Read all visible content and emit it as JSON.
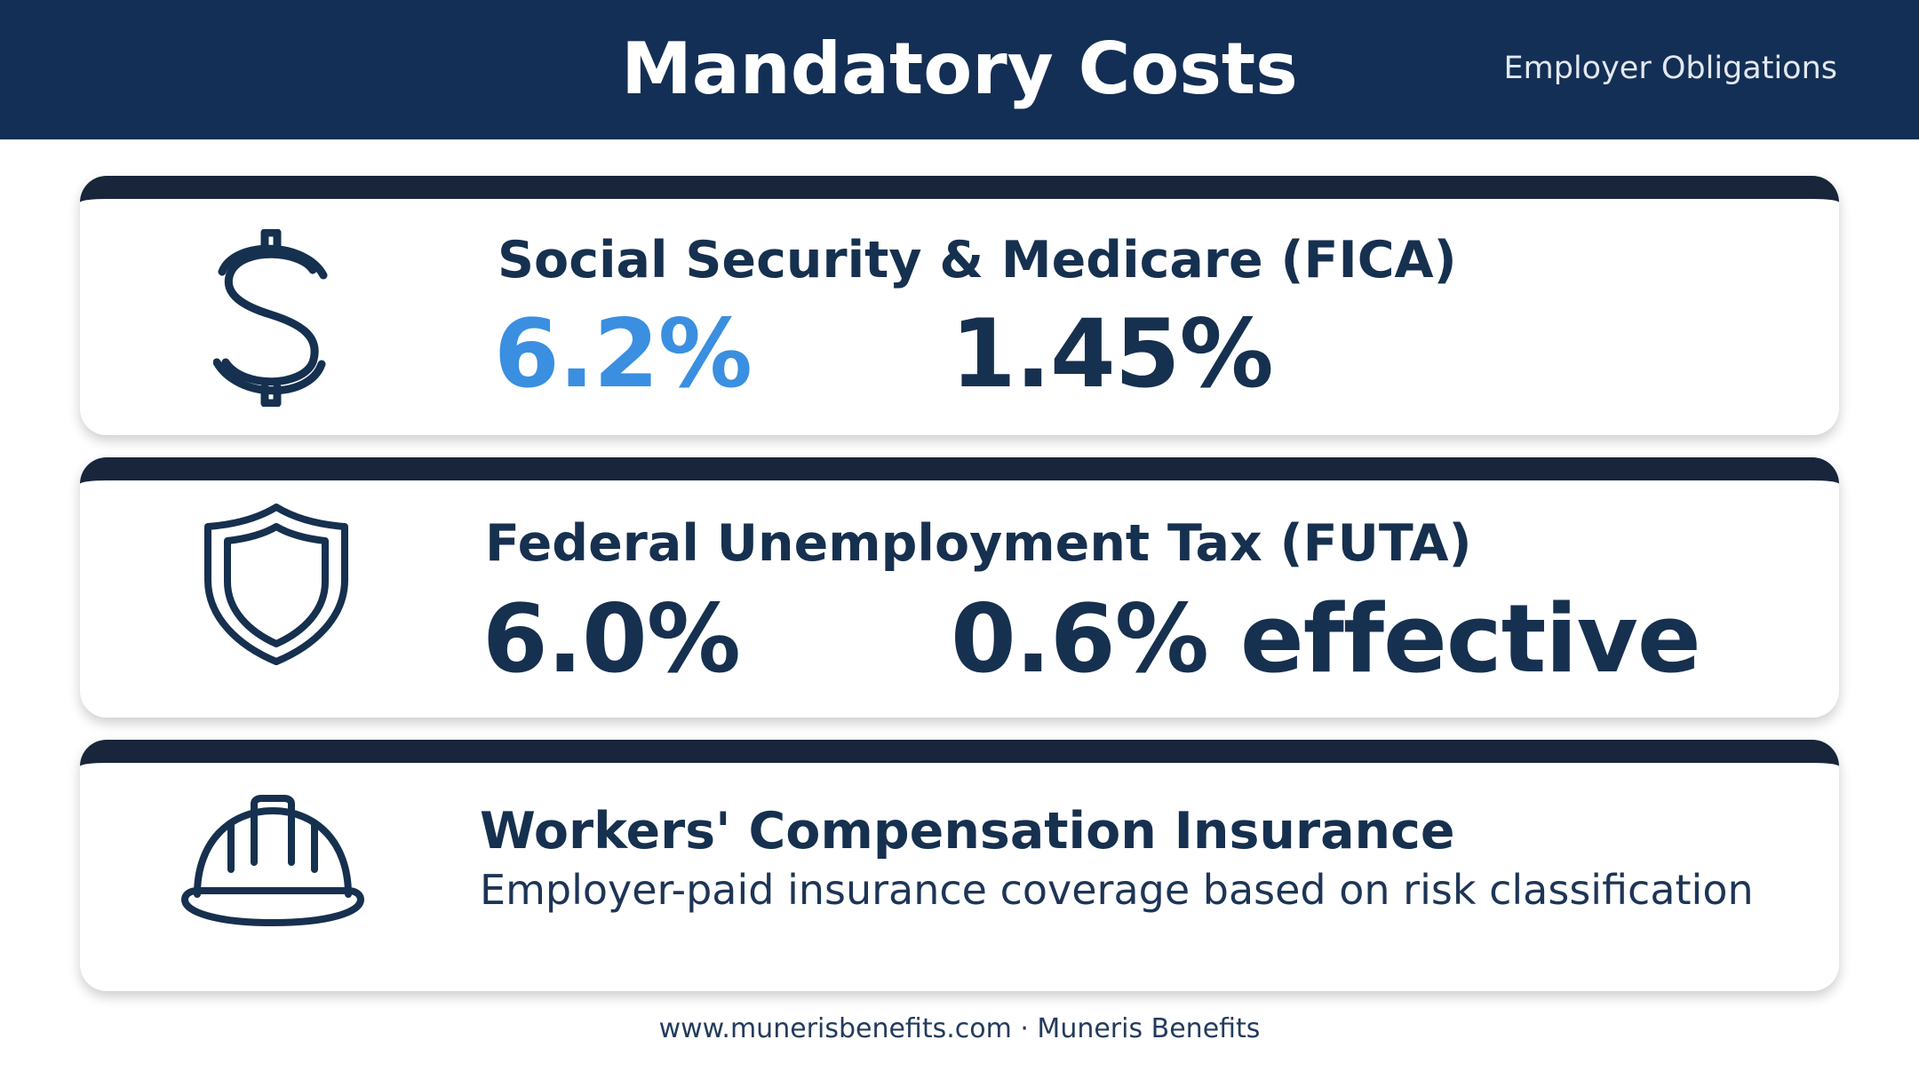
{
  "header": {
    "title": "Mandatory Costs",
    "subtitle": "Employer Obligations"
  },
  "cards": [
    {
      "icon": "dollar-sign-icon",
      "title": "Social Security & Medicare (FICA)",
      "stats": [
        "6.2%",
        "1.45%"
      ]
    },
    {
      "icon": "shield-icon",
      "title": "Federal Unemployment Tax (FUTA)",
      "stats": [
        "6.0%",
        "0.6% effective"
      ]
    },
    {
      "icon": "hard-hat-icon",
      "title": "Workers' Compensation Insurance",
      "description": "Employer-paid insurance coverage based on risk classification"
    }
  ],
  "footer": {
    "text": "www.munerisbenefits.com · Muneris Benefits"
  },
  "colors": {
    "header_bg": "#142f55",
    "card_top_bar": "#18253a",
    "accent_blue": "#3a8fe0",
    "dark_text": "#16304f"
  }
}
